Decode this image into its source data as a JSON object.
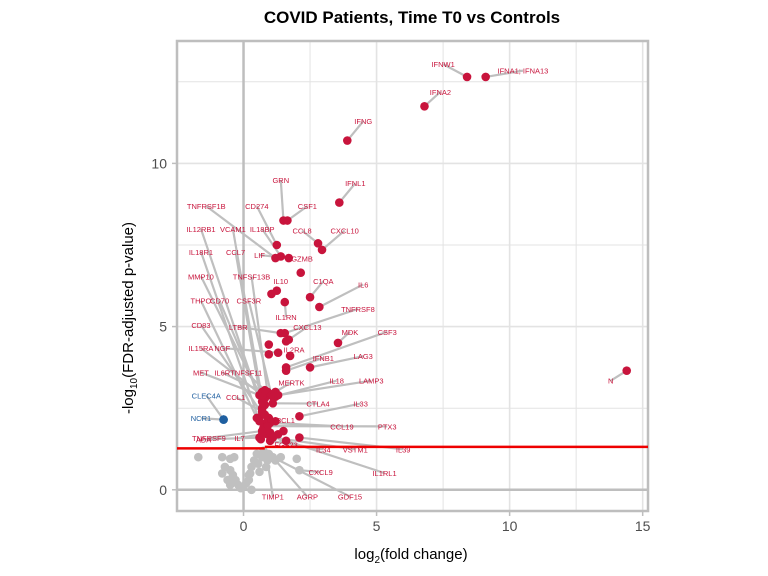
{
  "chart_data": {
    "type": "scatter",
    "subtype": "volcano",
    "title": "COVID Patients, Time T0 vs Controls",
    "xlabel_base": "log",
    "xlabel_sub": "2",
    "xlabel_rest": "(fold change)",
    "ylabel_base": "-log",
    "ylabel_sub": "10",
    "ylabel_rest": "(FDR-adjusted p-value)",
    "xlim": [
      -2.5,
      15.2
    ],
    "ylim": [
      -0.65,
      13.75
    ],
    "x_ticks": [
      0,
      5,
      10,
      15
    ],
    "y_ticks": [
      0,
      5,
      10
    ],
    "x_minor": [
      -2.5,
      2.5,
      7.5,
      12.5
    ],
    "y_minor": [
      2.5,
      7.5,
      12.5
    ],
    "grid": true,
    "significance_threshold": 1.27,
    "colors": {
      "up": "#c8143c",
      "down": "#1f5fa0",
      "ns": "#c0c0c0",
      "threshold": "#ee0000",
      "connector": "#bfbfbf",
      "frame": "#bebebe",
      "grid": "#e3e3e3"
    },
    "points_labeled": [
      {
        "gene": "IFNW1",
        "x": 8.4,
        "y": 12.65,
        "group": "up",
        "lx": 7.5,
        "ly": 12.95
      },
      {
        "gene": "IFNA1; IFNA13",
        "x": 9.1,
        "y": 12.65,
        "group": "up",
        "lx": 10.5,
        "ly": 12.75
      },
      {
        "gene": "IFNA2",
        "x": 6.8,
        "y": 11.75,
        "group": "up",
        "lx": 7.4,
        "ly": 12.1
      },
      {
        "gene": "IFNG",
        "x": 3.9,
        "y": 10.7,
        "group": "up",
        "lx": 4.5,
        "ly": 11.2
      },
      {
        "gene": "IFNL1",
        "x": 3.6,
        "y": 8.8,
        "group": "up",
        "lx": 4.2,
        "ly": 9.3
      },
      {
        "gene": "GRN",
        "x": 1.5,
        "y": 8.25,
        "group": "up",
        "lx": 1.4,
        "ly": 9.4
      },
      {
        "gene": "CSF1",
        "x": 1.65,
        "y": 8.25,
        "group": "up",
        "lx": 2.4,
        "ly": 8.6
      },
      {
        "gene": "TNFRSF1B",
        "x": 1.2,
        "y": 7.1,
        "group": "up",
        "lx": -1.4,
        "ly": 8.6
      },
      {
        "gene": "CD274",
        "x": 1.25,
        "y": 7.5,
        "group": "up",
        "lx": 0.5,
        "ly": 8.6
      },
      {
        "gene": "CCL8",
        "x": 2.8,
        "y": 7.55,
        "group": "up",
        "lx": 2.2,
        "ly": 7.85
      },
      {
        "gene": "CXCL10",
        "x": 2.95,
        "y": 7.35,
        "group": "up",
        "lx": 3.8,
        "ly": 7.85
      },
      {
        "gene": "IL12RB1",
        "x": 0.9,
        "y": 2.0,
        "group": "up",
        "lx": -1.6,
        "ly": 7.9
      },
      {
        "gene": "VCAM1",
        "x": 0.8,
        "y": 2.3,
        "group": "up",
        "lx": -0.4,
        "ly": 7.9
      },
      {
        "gene": "IL18BP",
        "x": 1.4,
        "y": 7.15,
        "group": "up",
        "lx": 0.7,
        "ly": 7.9
      },
      {
        "gene": "LIF",
        "x": 1.7,
        "y": 7.1,
        "group": "up",
        "lx": 0.6,
        "ly": 7.1
      },
      {
        "gene": "GZMB",
        "x": 2.15,
        "y": 6.65,
        "group": "up",
        "lx": 2.2,
        "ly": 7.0
      },
      {
        "gene": "IL18R1",
        "x": 0.6,
        "y": 2.1,
        "group": "up",
        "lx": -1.6,
        "ly": 7.2
      },
      {
        "gene": "CCL7",
        "x": 0.7,
        "y": 2.5,
        "group": "up",
        "lx": -0.3,
        "ly": 7.2
      },
      {
        "gene": "MMP10",
        "x": 0.8,
        "y": 2.6,
        "group": "up",
        "lx": -1.6,
        "ly": 6.45
      },
      {
        "gene": "TNFSF13B",
        "x": 0.9,
        "y": 3.0,
        "group": "up",
        "lx": 0.3,
        "ly": 6.45
      },
      {
        "gene": "IL10",
        "x": 1.25,
        "y": 6.1,
        "group": "up",
        "lx": 1.4,
        "ly": 6.3
      },
      {
        "gene": "C1QA",
        "x": 2.5,
        "y": 5.9,
        "group": "up",
        "lx": 3.0,
        "ly": 6.3
      },
      {
        "gene": "IL6",
        "x": 2.85,
        "y": 5.6,
        "group": "up",
        "lx": 4.5,
        "ly": 6.2
      },
      {
        "gene": "THPO",
        "x": 0.5,
        "y": 2.2,
        "group": "up",
        "lx": -1.6,
        "ly": 5.7
      },
      {
        "gene": "CD70",
        "x": 0.7,
        "y": 2.7,
        "group": "up",
        "lx": -0.9,
        "ly": 5.7
      },
      {
        "gene": "CSF3R",
        "x": 1.05,
        "y": 2.9,
        "group": "up",
        "lx": 0.2,
        "ly": 5.7
      },
      {
        "gene": "TNFRSF8",
        "x": 1.55,
        "y": 4.8,
        "group": "up",
        "lx": 4.3,
        "ly": 5.45
      },
      {
        "gene": "IL1RN",
        "x": 1.55,
        "y": 5.75,
        "group": "up",
        "lx": 1.6,
        "ly": 5.2
      },
      {
        "gene": "CD83",
        "x": 0.9,
        "y": 2.1,
        "group": "up",
        "lx": -1.6,
        "ly": 4.95
      },
      {
        "gene": "LTBR",
        "x": 1.4,
        "y": 4.8,
        "group": "up",
        "lx": -0.2,
        "ly": 4.9
      },
      {
        "gene": "CXCL13",
        "x": 1.7,
        "y": 4.6,
        "group": "up",
        "lx": 2.4,
        "ly": 4.9
      },
      {
        "gene": "MDK",
        "x": 3.55,
        "y": 4.5,
        "group": "up",
        "lx": 4.0,
        "ly": 4.75
      },
      {
        "gene": "CSF3",
        "x": 1.6,
        "y": 3.75,
        "group": "up",
        "lx": 5.4,
        "ly": 4.75
      },
      {
        "gene": "IL15RA",
        "x": 0.7,
        "y": 2.9,
        "group": "up",
        "lx": -1.6,
        "ly": 4.25
      },
      {
        "gene": "NGF",
        "x": 1.3,
        "y": 4.2,
        "group": "up",
        "lx": -0.8,
        "ly": 4.25
      },
      {
        "gene": "IL2RA",
        "x": 1.75,
        "y": 4.1,
        "group": "up",
        "lx": 1.9,
        "ly": 4.2
      },
      {
        "gene": "IFNB1",
        "x": 1.6,
        "y": 3.65,
        "group": "up",
        "lx": 3.0,
        "ly": 3.95
      },
      {
        "gene": "LAG3",
        "x": 2.5,
        "y": 3.75,
        "group": "up",
        "lx": 4.5,
        "ly": 4.0
      },
      {
        "gene": "MET",
        "x": 0.6,
        "y": 2.9,
        "group": "up",
        "lx": -1.6,
        "ly": 3.5
      },
      {
        "gene": "IL6R",
        "x": 0.7,
        "y": 3.0,
        "group": "up",
        "lx": -0.8,
        "ly": 3.5
      },
      {
        "gene": "TNFSF11",
        "x": 0.8,
        "y": 3.05,
        "group": "up",
        "lx": 0.1,
        "ly": 3.5
      },
      {
        "gene": "N",
        "x": 14.4,
        "y": 3.65,
        "group": "up",
        "lx": 13.8,
        "ly": 3.25
      },
      {
        "gene": "MERTK",
        "x": 1.2,
        "y": 3.0,
        "group": "up",
        "lx": 1.8,
        "ly": 3.2
      },
      {
        "gene": "IL18",
        "x": 1.1,
        "y": 2.85,
        "group": "up",
        "lx": 3.5,
        "ly": 3.25
      },
      {
        "gene": "LAMP3",
        "x": 1.3,
        "y": 2.9,
        "group": "up",
        "lx": 4.8,
        "ly": 3.25
      },
      {
        "gene": "CLEC4A",
        "x": -0.75,
        "y": 2.15,
        "group": "down",
        "lx": -1.4,
        "ly": 2.8
      },
      {
        "gene": "CCL1",
        "x": 0.7,
        "y": 2.4,
        "group": "up",
        "lx": -0.3,
        "ly": 2.75
      },
      {
        "gene": "CTLA4",
        "x": 1.1,
        "y": 2.65,
        "group": "up",
        "lx": 2.8,
        "ly": 2.55
      },
      {
        "gene": "IL33",
        "x": 2.1,
        "y": 2.25,
        "group": "up",
        "lx": 4.4,
        "ly": 2.55
      },
      {
        "gene": "NCR1",
        "x": -0.75,
        "y": 2.15,
        "group": "down",
        "lx": -1.6,
        "ly": 2.1
      },
      {
        "gene": "CX3CL1",
        "x": 1.2,
        "y": 2.1,
        "group": "up",
        "lx": 1.4,
        "ly": 2.05
      },
      {
        "gene": "CCL19",
        "x": 1.0,
        "y": 2.05,
        "group": "up",
        "lx": 3.7,
        "ly": 1.85
      },
      {
        "gene": "PTX3",
        "x": 0.9,
        "y": 1.95,
        "group": "up",
        "lx": 5.4,
        "ly": 1.85
      },
      {
        "gene": "TNFRSF9",
        "x": 0.7,
        "y": 1.8,
        "group": "up",
        "lx": -1.3,
        "ly": 1.5
      },
      {
        "gene": "ADA",
        "x": 0.6,
        "y": 1.6,
        "group": "up",
        "lx": -1.5,
        "ly": 1.45
      },
      {
        "gene": "IL7",
        "x": 0.7,
        "y": 1.7,
        "group": "up",
        "lx": -0.15,
        "ly": 1.5
      },
      {
        "gene": "FGF23",
        "x": 1.0,
        "y": 1.75,
        "group": "up",
        "lx": 1.6,
        "ly": 1.3
      },
      {
        "gene": "IL34",
        "x": 1.0,
        "y": 1.5,
        "group": "up",
        "lx": 3.0,
        "ly": 1.15
      },
      {
        "gene": "VSTM1",
        "x": 1.1,
        "y": 1.6,
        "group": "up",
        "lx": 4.2,
        "ly": 1.15
      },
      {
        "gene": "IL39",
        "x": 2.1,
        "y": 1.6,
        "group": "up",
        "lx": 6.0,
        "ly": 1.15
      },
      {
        "gene": "CXCL9",
        "x": 2.1,
        "y": 0.6,
        "group": "ns",
        "lx": 2.9,
        "ly": 0.45
      },
      {
        "gene": "IL1RL1",
        "x": 1.6,
        "y": 1.5,
        "group": "up",
        "lx": 5.3,
        "ly": 0.42
      },
      {
        "gene": "TIMP1",
        "x": 0.9,
        "y": 0.9,
        "group": "ns",
        "lx": 1.1,
        "ly": -0.3
      },
      {
        "gene": "AGRP",
        "x": 1.2,
        "y": 0.9,
        "group": "ns",
        "lx": 2.4,
        "ly": -0.3
      },
      {
        "gene": "GDF15",
        "x": 1.1,
        "y": 1.0,
        "group": "ns",
        "lx": 4.0,
        "ly": -0.3
      }
    ],
    "points_unlabeled": [
      {
        "x": -1.7,
        "y": 1.0,
        "group": "ns"
      },
      {
        "x": -0.8,
        "y": 1.0,
        "group": "ns"
      },
      {
        "x": -0.5,
        "y": 0.95,
        "group": "ns"
      },
      {
        "x": -0.35,
        "y": 1.0,
        "group": "ns"
      },
      {
        "x": -0.7,
        "y": 0.7,
        "group": "ns"
      },
      {
        "x": -0.5,
        "y": 0.6,
        "group": "ns"
      },
      {
        "x": -0.8,
        "y": 0.5,
        "group": "ns"
      },
      {
        "x": -0.4,
        "y": 0.45,
        "group": "ns"
      },
      {
        "x": -0.6,
        "y": 0.3,
        "group": "ns"
      },
      {
        "x": -0.3,
        "y": 0.3,
        "group": "ns"
      },
      {
        "x": -0.5,
        "y": 0.15,
        "group": "ns"
      },
      {
        "x": -0.2,
        "y": 0.15,
        "group": "ns"
      },
      {
        "x": -0.1,
        "y": 0.05,
        "group": "ns"
      },
      {
        "x": 0.0,
        "y": 0.1,
        "group": "ns"
      },
      {
        "x": 0.1,
        "y": 0.2,
        "group": "ns"
      },
      {
        "x": 0.2,
        "y": 0.3,
        "group": "ns"
      },
      {
        "x": 0.25,
        "y": 0.5,
        "group": "ns"
      },
      {
        "x": 0.3,
        "y": 0.7,
        "group": "ns"
      },
      {
        "x": 0.4,
        "y": 0.9,
        "group": "ns"
      },
      {
        "x": 0.5,
        "y": 1.1,
        "group": "ns"
      },
      {
        "x": 0.55,
        "y": 0.8,
        "group": "ns"
      },
      {
        "x": 0.6,
        "y": 0.55,
        "group": "ns"
      },
      {
        "x": 0.7,
        "y": 1.0,
        "group": "ns"
      },
      {
        "x": 0.75,
        "y": 1.2,
        "group": "ns"
      },
      {
        "x": 0.85,
        "y": 0.7,
        "group": "ns"
      },
      {
        "x": 0.95,
        "y": 1.1,
        "group": "ns"
      },
      {
        "x": 1.4,
        "y": 1.0,
        "group": "ns"
      },
      {
        "x": 2.0,
        "y": 0.95,
        "group": "ns"
      },
      {
        "x": 0.3,
        "y": 0.0,
        "group": "ns"
      },
      {
        "x": 0.2,
        "y": 0.45,
        "group": "ns"
      },
      {
        "x": 0.8,
        "y": 2.8,
        "group": "up"
      },
      {
        "x": 0.9,
        "y": 3.0,
        "group": "up"
      },
      {
        "x": 1.0,
        "y": 2.9,
        "group": "up"
      },
      {
        "x": 1.2,
        "y": 2.85,
        "group": "up"
      },
      {
        "x": 0.7,
        "y": 2.3,
        "group": "up"
      },
      {
        "x": 0.85,
        "y": 2.0,
        "group": "up"
      },
      {
        "x": 0.75,
        "y": 1.9,
        "group": "up"
      },
      {
        "x": 0.95,
        "y": 2.2,
        "group": "up"
      },
      {
        "x": 0.65,
        "y": 1.55,
        "group": "up"
      },
      {
        "x": 1.3,
        "y": 1.7,
        "group": "up"
      },
      {
        "x": 0.9,
        "y": 1.7,
        "group": "up"
      },
      {
        "x": 1.5,
        "y": 1.8,
        "group": "up"
      },
      {
        "x": 0.95,
        "y": 4.15,
        "group": "up"
      },
      {
        "x": 1.05,
        "y": 6.0,
        "group": "up"
      },
      {
        "x": 1.6,
        "y": 4.55,
        "group": "up"
      },
      {
        "x": 0.95,
        "y": 4.45,
        "group": "up"
      }
    ]
  }
}
